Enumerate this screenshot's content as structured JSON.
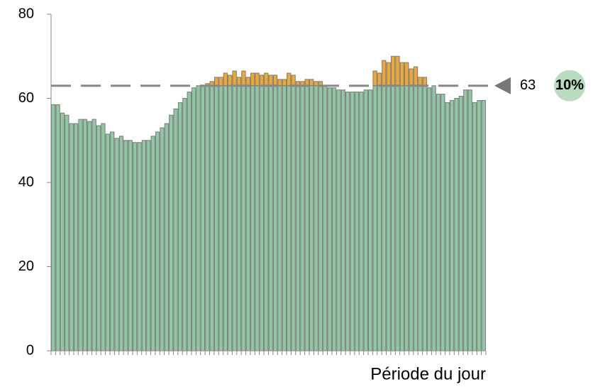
{
  "chart_data": {
    "type": "bar",
    "x_label": "Période du jour",
    "values": [
      58.5,
      58.5,
      56.5,
      56,
      54,
      54,
      55,
      55,
      54.5,
      55,
      53.5,
      54,
      51.5,
      52,
      50.5,
      51,
      50,
      50,
      49.5,
      49.5,
      50,
      50,
      51,
      52,
      53,
      54,
      56,
      57.5,
      59,
      60,
      61.5,
      62.5,
      63,
      63,
      63.5,
      64,
      65,
      65,
      66,
      65.5,
      66.5,
      65,
      66.5,
      65,
      66,
      66,
      65.5,
      66,
      65.5,
      65.5,
      64.5,
      64.5,
      66,
      65.5,
      64,
      64,
      64.5,
      64.5,
      64,
      64,
      63,
      62.5,
      62.5,
      62,
      62,
      61.5,
      61.5,
      61.5,
      61.5,
      62,
      62,
      66.5,
      66,
      69,
      68.5,
      70,
      70,
      68.5,
      68.5,
      67,
      67.5,
      65,
      65,
      62.5,
      63,
      61,
      61,
      59,
      59.5,
      60,
      60.5,
      62,
      62,
      59,
      59.5,
      59.5
    ],
    "color": "#8fc9a3",
    "above_color": "#f0a830",
    "edge_color": "#7a7a7a",
    "threshold": 63,
    "threshold_share": "10%",
    "ylim": [
      0,
      80
    ],
    "yticks": [
      0,
      20,
      40,
      60,
      80
    ]
  }
}
